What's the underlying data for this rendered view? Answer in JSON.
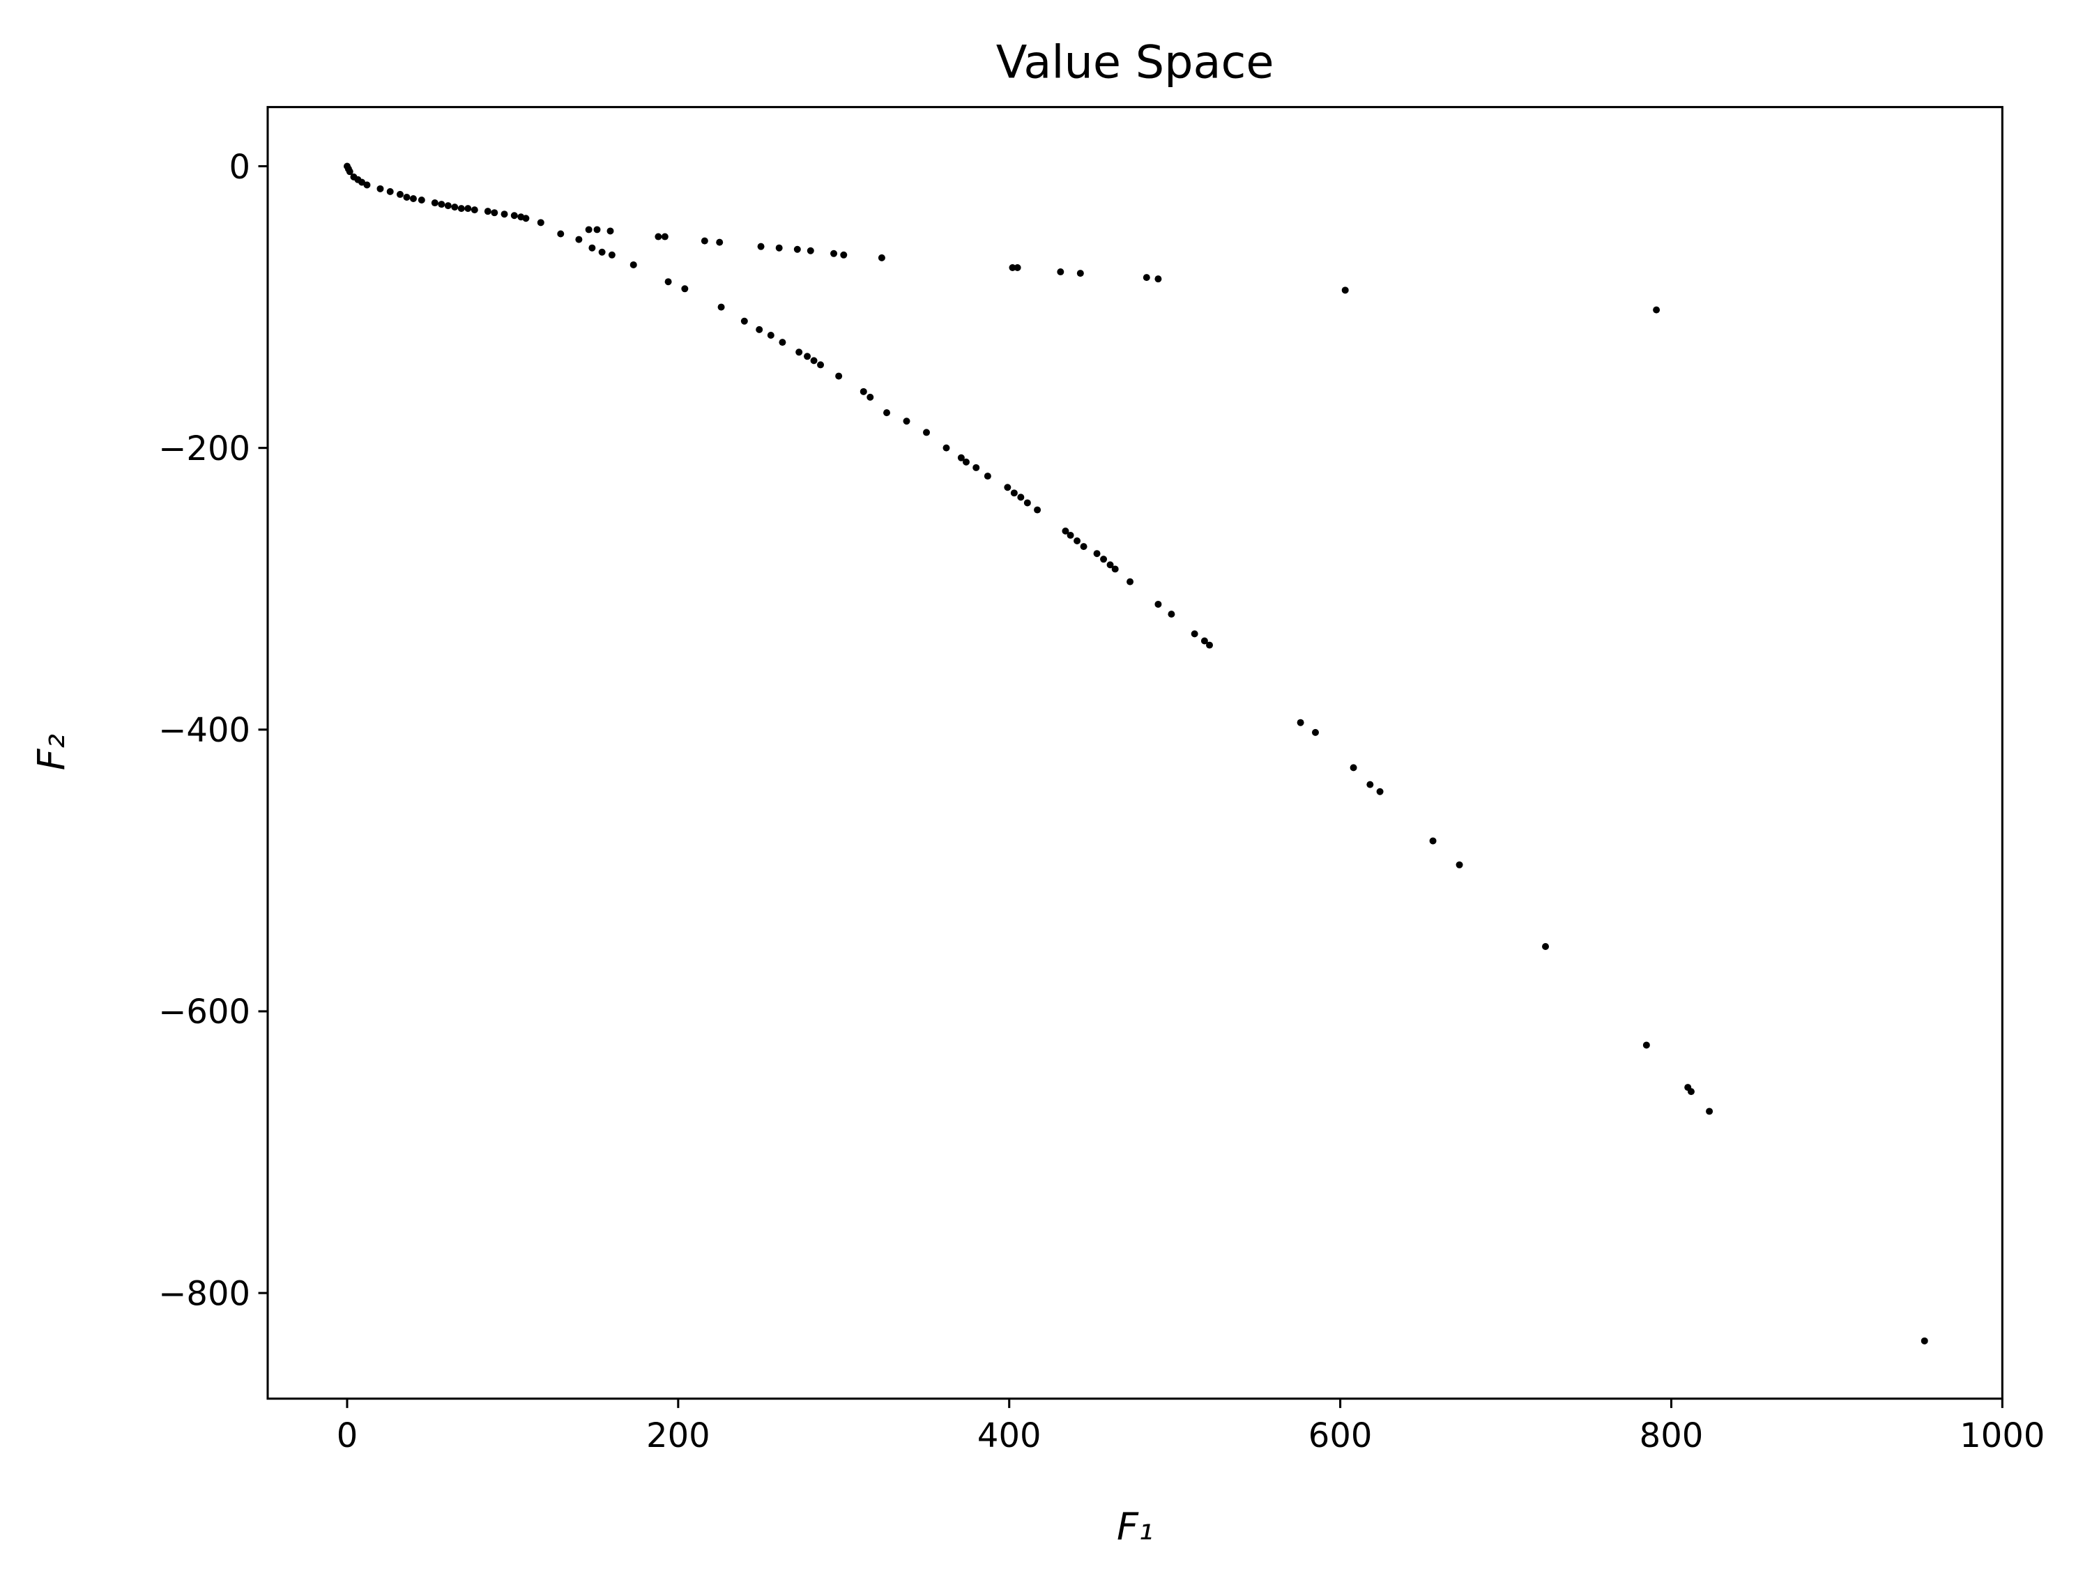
{
  "chart_data": {
    "type": "scatter",
    "title": "Value Space",
    "x_label": "F₁",
    "y_label": "F₂",
    "color": "#000000",
    "x": [
      0,
      0.8,
      1.6,
      4,
      6.5,
      8.9,
      12,
      20,
      26,
      32,
      36,
      40,
      45,
      53,
      57,
      61,
      65,
      69,
      73,
      77,
      85,
      89,
      95,
      101,
      105,
      108,
      117,
      146,
      151,
      159,
      188,
      192,
      216,
      225,
      250,
      261,
      272,
      280,
      294,
      300,
      323,
      402,
      405,
      431,
      443,
      483,
      490,
      603,
      791,
      129,
      140,
      148,
      154,
      160,
      173,
      194,
      204,
      226,
      240,
      249,
      256,
      263,
      273,
      278,
      282,
      286,
      297,
      312,
      316,
      326,
      338,
      350,
      362,
      371,
      374,
      380,
      387,
      399,
      403,
      407,
      411,
      417,
      434,
      437,
      441,
      445,
      453,
      457,
      461,
      464,
      473,
      490,
      498,
      512,
      518,
      521,
      576,
      585,
      608,
      618,
      624,
      656,
      672,
      724,
      785,
      810,
      812,
      823,
      953
    ],
    "values": [
      0,
      -1.9,
      -3.8,
      -7.6,
      -9.5,
      -11.4,
      -13.3,
      -16,
      -18,
      -20,
      -22,
      -23,
      -24,
      -26,
      -27,
      -28,
      -29,
      -30,
      -30,
      -31,
      -32,
      -33,
      -34,
      -35,
      -36,
      -37,
      -40,
      -45,
      -45,
      -46,
      -50,
      -50,
      -53,
      -54,
      -57,
      -58,
      -59,
      -60,
      -62,
      -63,
      -65,
      -72,
      -72,
      -75,
      -76,
      -79,
      -80,
      -88,
      -102,
      -48,
      -52,
      -58,
      -61,
      -63,
      -70,
      -82,
      -87,
      -100,
      -110,
      -116,
      -120,
      -125,
      -132,
      -135,
      -138,
      -141,
      -149,
      -160,
      -164,
      -175,
      -181,
      -189,
      -200,
      -207,
      -210,
      -214,
      -220,
      -228,
      -232,
      -235,
      -239,
      -244,
      -259,
      -262,
      -266,
      -270,
      -275,
      -279,
      -283,
      -286,
      -295,
      -311,
      -318,
      -332,
      -337,
      -340,
      -395,
      -402,
      -427,
      -439,
      -444,
      -479,
      -496,
      -554,
      -624,
      -654,
      -657,
      -671,
      -834
    ],
    "xlim": [
      -48,
      1000
    ],
    "ylim": [
      -875,
      42
    ],
    "xticks": [
      0,
      200,
      400,
      600,
      800,
      1000
    ],
    "yticks": [
      0,
      {
        "value": -200,
        "label": "−200"
      },
      {
        "value": -400,
        "label": "−400"
      },
      {
        "value": -600,
        "label": "−600"
      },
      {
        "value": -800,
        "label": "−800"
      }
    ],
    "grid": false
  }
}
